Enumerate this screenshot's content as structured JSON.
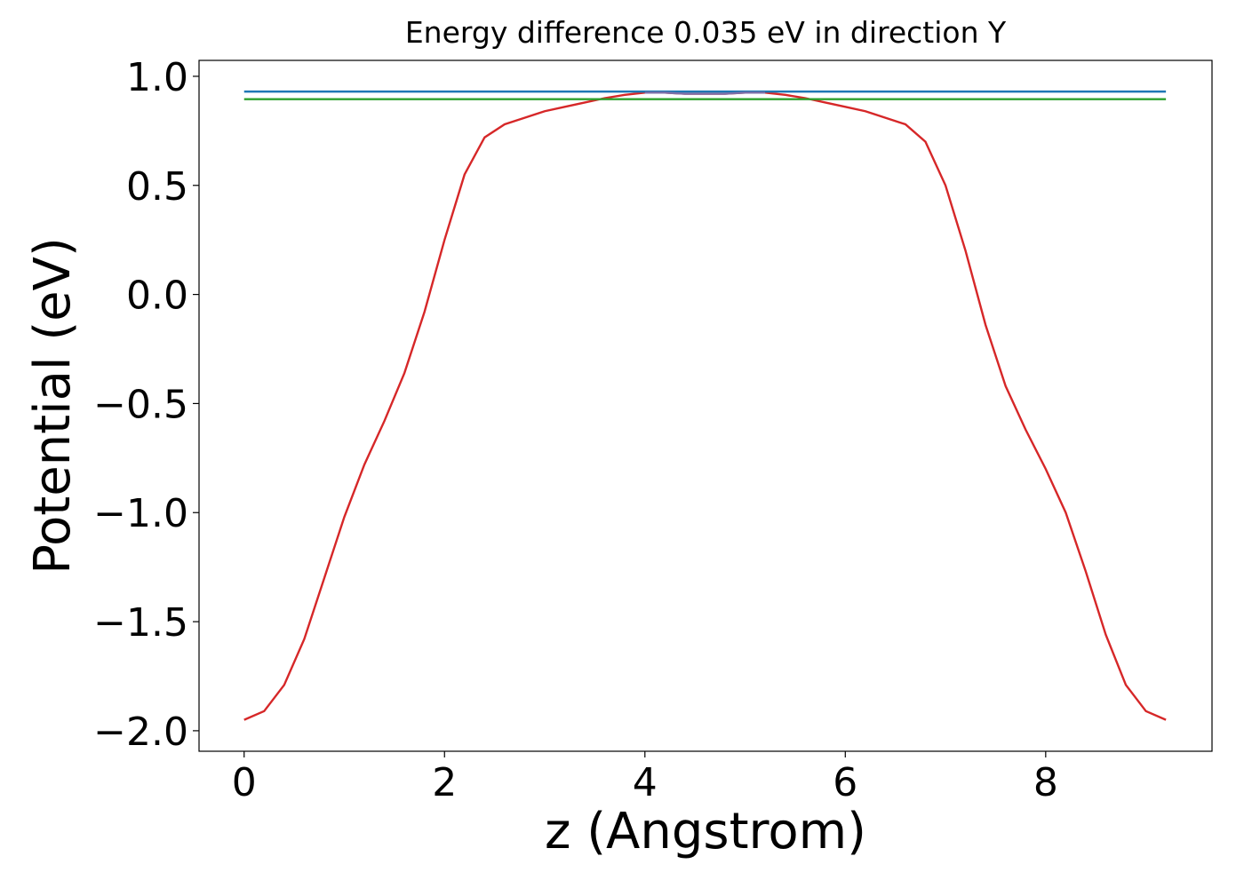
{
  "chart_data": {
    "type": "line",
    "title": "Energy difference 0.035 eV in direction Y",
    "xlabel": "z (Angstrom)",
    "ylabel": "Potential (eV)",
    "xlim": [
      -0.45,
      9.66
    ],
    "ylim": [
      -2.094,
      1.073
    ],
    "xticks": [
      0,
      2,
      4,
      6,
      8
    ],
    "yticks": [
      {
        "value": 1.0,
        "label": "1.0"
      },
      {
        "value": 0.5,
        "label": "0.5"
      },
      {
        "value": 0.0,
        "label": "0.0"
      },
      {
        "value": -0.5,
        "label": "−0.5"
      },
      {
        "value": -1.0,
        "label": "−1.0"
      },
      {
        "value": -1.5,
        "label": "−1.5"
      },
      {
        "value": -2.0,
        "label": "−2.0"
      }
    ],
    "series": [
      {
        "color": "#d62728",
        "x": [
          0,
          0.2,
          0.4,
          0.6,
          0.8,
          1.0,
          1.2,
          1.4,
          1.6,
          1.8,
          2.0,
          2.2,
          2.4,
          2.6,
          2.8,
          3.0,
          3.2,
          3.4,
          3.6,
          3.8,
          4.0,
          4.2,
          4.4,
          4.6,
          4.8,
          5.0,
          5.2,
          5.4,
          5.6,
          5.8,
          6.0,
          6.2,
          6.4,
          6.6,
          6.8,
          7.0,
          7.2,
          7.4,
          7.6,
          7.8,
          8.0,
          8.2,
          8.4,
          8.6,
          8.8,
          9.0,
          9.2
        ],
        "values": [
          -1.95,
          -1.91,
          -1.79,
          -1.58,
          -1.3,
          -1.02,
          -0.78,
          -0.58,
          -0.36,
          -0.08,
          0.25,
          0.55,
          0.72,
          0.78,
          0.81,
          0.84,
          0.86,
          0.88,
          0.9,
          0.915,
          0.925,
          0.925,
          0.92,
          0.92,
          0.92,
          0.925,
          0.925,
          0.915,
          0.9,
          0.88,
          0.86,
          0.84,
          0.81,
          0.78,
          0.7,
          0.5,
          0.2,
          -0.14,
          -0.42,
          -0.62,
          -0.8,
          -1.0,
          -1.27,
          -1.56,
          -1.79,
          -1.91,
          -1.95
        ]
      },
      {
        "color": "#1f77b4",
        "x": [
          0,
          9.2
        ],
        "values": [
          0.93,
          0.93
        ]
      },
      {
        "color": "#2ca02c",
        "x": [
          0,
          9.2
        ],
        "values": [
          0.895,
          0.895
        ]
      },
      {
        "color": "#7b6fa8",
        "x": [
          4.0,
          4.2,
          4.4,
          4.6,
          4.8,
          5.0,
          5.2
        ],
        "values": [
          0.925,
          0.925,
          0.92,
          0.92,
          0.92,
          0.925,
          0.925
        ]
      }
    ]
  }
}
